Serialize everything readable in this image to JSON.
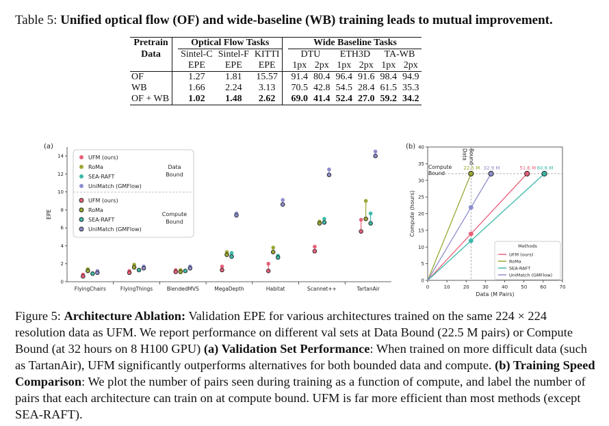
{
  "table_caption": {
    "label": "Table 5:",
    "text": "Unified optical flow (OF) and wide-baseline (WB) training leads to mutual improvement."
  },
  "table": {
    "pretrain_header_1": "Pretrain",
    "pretrain_header_2": "Data",
    "of_group": "Optical Flow Tasks",
    "wb_group": "Wide Baseline Tasks",
    "of_cols": [
      {
        "name": "Sintel-C",
        "metric": "EPE"
      },
      {
        "name": "Sintel-F",
        "metric": "EPE"
      },
      {
        "name": "KITTI",
        "metric": "EPE"
      }
    ],
    "wb_datasets": [
      "DTU",
      "ETH3D",
      "TA-WB"
    ],
    "wb_subcols": [
      "1px",
      "2px",
      "1px",
      "2px",
      "1px",
      "2px"
    ],
    "rows": [
      {
        "name": "OF",
        "of": [
          "1.27",
          "1.81",
          "15.57"
        ],
        "wb": [
          "91.4",
          "80.4",
          "96.4",
          "91.6",
          "98.4",
          "94.9"
        ]
      },
      {
        "name": "WB",
        "of": [
          "1.66",
          "2.24",
          "3.13"
        ],
        "wb": [
          "70.5",
          "42.8",
          "54.5",
          "28.4",
          "61.5",
          "35.3"
        ]
      },
      {
        "name": "OF + WB",
        "of": [
          "1.02",
          "1.48",
          "2.62"
        ],
        "wb": [
          "69.0",
          "41.4",
          "52.4",
          "27.0",
          "59.2",
          "34.2"
        ]
      }
    ]
  },
  "chart_data": [
    {
      "type": "scatter",
      "panel_label": "(a)",
      "ylabel": "EPE",
      "ylim": [
        0,
        15
      ],
      "yticks": [
        "0",
        "2",
        "4",
        "6",
        "8",
        "10",
        "12",
        "14"
      ],
      "categories": [
        "FlyingChairs",
        "FlyingThings",
        "BlendedMVS",
        "MegaDepth",
        "Habitat",
        "Scannet++",
        "TartanAir"
      ],
      "legend_data_title": "Data\nBound",
      "legend_compute_title": "Compute\nBound",
      "series": [
        {
          "name": "UFM (ours)",
          "color": "#e8607a",
          "data_bound": [
            0.8,
            1.2,
            1.3,
            1.7,
            2.0,
            3.9,
            6.9
          ],
          "compute_bound": [
            0.6,
            1.0,
            1.1,
            1.3,
            1.2,
            3.4,
            5.6
          ]
        },
        {
          "name": "RoMa",
          "color": "#9aa632",
          "data_bound": [
            1.4,
            1.9,
            1.3,
            3.3,
            3.8,
            6.7,
            9.0
          ],
          "compute_bound": [
            1.2,
            1.6,
            1.1,
            3.0,
            3.3,
            6.5,
            7.0
          ]
        },
        {
          "name": "SEA-RAFT",
          "color": "#3cb8a8",
          "data_bound": [
            0.9,
            1.3,
            1.2,
            3.2,
            2.9,
            7.0,
            7.6
          ],
          "compute_bound": [
            0.9,
            1.3,
            1.2,
            2.8,
            2.7,
            6.6,
            6.5
          ]
        },
        {
          "name": "UniMatch (GMFlow)",
          "color": "#8c8ccc",
          "data_bound": [
            1.2,
            1.7,
            1.7,
            7.6,
            9.1,
            12.5,
            14.5
          ],
          "compute_bound": [
            1.0,
            1.5,
            1.5,
            7.4,
            8.6,
            11.9,
            14.0
          ]
        }
      ]
    },
    {
      "type": "line",
      "panel_label": "(b)",
      "xlabel": "Data (M Pairs)",
      "ylabel": "Compute (hours)",
      "xlim": [
        0,
        70
      ],
      "ylim": [
        0,
        40
      ],
      "xticks": [
        "0",
        "10",
        "20",
        "30",
        "40",
        "50",
        "60",
        "70"
      ],
      "yticks": [
        "0",
        "5",
        "10",
        "15",
        "20",
        "25",
        "30",
        "35",
        "40"
      ],
      "data_bound_x": 22.5,
      "compute_bound_y": 32,
      "data_bound_label": "Data\nBound",
      "compute_bound_label": "Compute\nBound",
      "legend_title": "Methods",
      "series": [
        {
          "name": "UFM (ours)",
          "color": "#e8607a",
          "end_x": 51.6,
          "label": "51.6 M"
        },
        {
          "name": "RoMa",
          "color": "#9aa632",
          "end_x": 22.5,
          "label": "22.5 M"
        },
        {
          "name": "SEA-RAFT",
          "color": "#3cb8a8",
          "end_x": 60.6,
          "label": "60.6 M"
        },
        {
          "name": "UniMatch (GMFlow)",
          "color": "#8c8ccc",
          "end_x": 32.9,
          "label": "32.9 M"
        }
      ]
    }
  ],
  "figure_caption": {
    "label": "Figure 5:",
    "title": "Architecture Ablation:",
    "text1": " Validation EPE for various architectures trained on the same 224 × 224 resolution data as UFM. We report performance on different val sets at Data Bound (22.5 M pairs) or Compute Bound (at 32 hours on 8 H100 GPU) ",
    "part_a": "(a) Validation Set Performance",
    "text2": ": When trained on more difficult data (such as TartanAir), UFM significantly outperforms alternatives for both bounded data and compute. ",
    "part_b": "(b) Training Speed Comparison",
    "text3": ": We plot the number of pairs seen during training as a function of compute, and label the number of pairs that each architecture can train on at compute bound. UFM is far more efficient than most methods (except SEA-RAFT)."
  }
}
